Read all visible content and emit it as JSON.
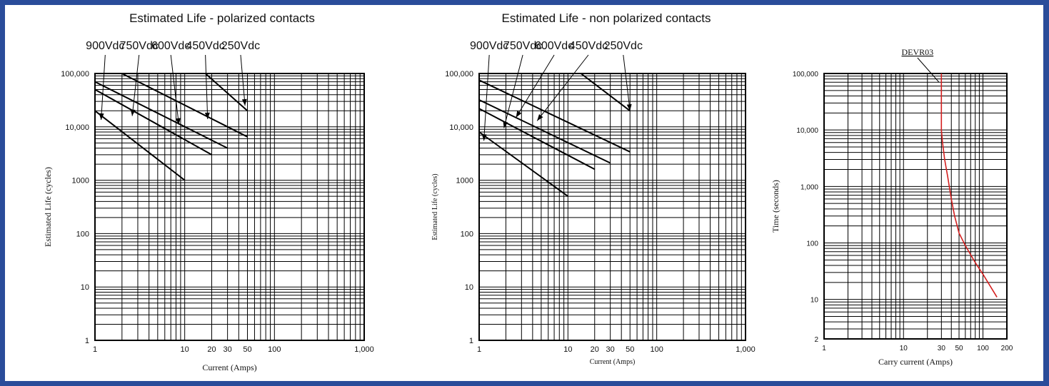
{
  "frame": {
    "border_color": "#2a4c9a"
  },
  "chart_data": [
    {
      "type": "line",
      "title": "Estimated Life - polarized contacts",
      "xlabel": "Current (Amps)",
      "ylabel": "Estimated Life (cycles)",
      "xscale": "log",
      "yscale": "log",
      "xlim": [
        1,
        1000
      ],
      "ylim": [
        1,
        100000
      ],
      "grid": true,
      "xticks": [
        {
          "v": 1,
          "t": "1"
        },
        {
          "v": 10,
          "t": "10"
        },
        {
          "v": 20,
          "t": "20"
        },
        {
          "v": 30,
          "t": "30"
        },
        {
          "v": 50,
          "t": "50"
        },
        {
          "v": 100,
          "t": "100"
        },
        {
          "v": 1000,
          "t": "1,000"
        }
      ],
      "yticks": [
        {
          "v": 1,
          "t": "1"
        },
        {
          "v": 10,
          "t": "10"
        },
        {
          "v": 100,
          "t": "100"
        },
        {
          "v": 1000,
          "t": "1000"
        },
        {
          "v": 10000,
          "t": "10,000"
        },
        {
          "v": 100000,
          "t": "100,000"
        }
      ],
      "line_color": "#000000",
      "series": [
        {
          "name": "900Vdc",
          "label_x": 1.3,
          "arrow_tip": [
            1.17,
            13500
          ],
          "points": [
            [
              1,
              20000
            ],
            [
              10,
              1000
            ]
          ]
        },
        {
          "name": "750Vdc",
          "label_x": 3.1,
          "arrow_tip": [
            2.6,
            16000
          ],
          "points": [
            [
              1,
              50000
            ],
            [
              20,
              3000
            ]
          ]
        },
        {
          "name": "600Vdc",
          "label_x": 7.0,
          "arrow_tip": [
            8.6,
            11000
          ],
          "points": [
            [
              1,
              70000
            ],
            [
              30,
              4000
            ]
          ]
        },
        {
          "name": "450Vdc",
          "label_x": 17.0,
          "arrow_tip": [
            18,
            14000
          ],
          "points": [
            [
              2,
              100000
            ],
            [
              50,
              6500
            ]
          ]
        },
        {
          "name": "250Vdc",
          "label_x": 42,
          "arrow_tip": [
            47,
            25000
          ],
          "points": [
            [
              17,
              100000
            ],
            [
              50,
              20000
            ]
          ]
        }
      ]
    },
    {
      "type": "line",
      "title": "Estimated Life - non polarized contacts",
      "xlabel": "Current (Amps)",
      "ylabel": "Estimated Life (cycles)",
      "xscale": "log",
      "yscale": "log",
      "xlim": [
        1,
        1000
      ],
      "ylim": [
        1,
        100000
      ],
      "grid": true,
      "xticks": [
        {
          "v": 1,
          "t": "1"
        },
        {
          "v": 10,
          "t": "10"
        },
        {
          "v": 20,
          "t": "20"
        },
        {
          "v": 30,
          "t": "30"
        },
        {
          "v": 50,
          "t": "50"
        },
        {
          "v": 100,
          "t": "100"
        },
        {
          "v": 1000,
          "t": "1,000"
        }
      ],
      "yticks": [
        {
          "v": 1,
          "t": "1"
        },
        {
          "v": 10,
          "t": "10"
        },
        {
          "v": 100,
          "t": "100"
        },
        {
          "v": 1000,
          "t": "1000"
        },
        {
          "v": 10000,
          "t": "10,000"
        },
        {
          "v": 100000,
          "t": "100,000"
        }
      ],
      "line_color": "#000000",
      "series": [
        {
          "name": "900Vdc",
          "label_x": 1.3,
          "arrow_tip": [
            1.13,
            5500
          ],
          "points": [
            [
              1,
              8000
            ],
            [
              10,
              500
            ]
          ]
        },
        {
          "name": "750Vdc",
          "label_x": 3.1,
          "arrow_tip": [
            1.9,
            9500
          ],
          "points": [
            [
              1,
              22000
            ],
            [
              20,
              1600
            ]
          ]
        },
        {
          "name": "600Vdc",
          "label_x": 7.0,
          "arrow_tip": [
            2.6,
            15000
          ],
          "points": [
            [
              1,
              32000
            ],
            [
              30,
              2100
            ]
          ]
        },
        {
          "name": "450Vdc",
          "label_x": 17.0,
          "arrow_tip": [
            4.5,
            13000
          ],
          "points": [
            [
              1,
              75000
            ],
            [
              50,
              3400
            ]
          ]
        },
        {
          "name": "250Vdc",
          "label_x": 42,
          "arrow_tip": [
            50,
            20000
          ],
          "points": [
            [
              14,
              100000
            ],
            [
              50,
              20000
            ]
          ]
        }
      ]
    },
    {
      "type": "line",
      "title": "",
      "xlabel": "Carry current (Amps)",
      "ylabel": "Time (seconds)",
      "xscale": "log",
      "yscale": "log",
      "xlim": [
        1,
        200
      ],
      "ylim": [
        2,
        100000
      ],
      "grid": true,
      "xticks": [
        {
          "v": 1,
          "t": "1"
        },
        {
          "v": 10,
          "t": "10"
        },
        {
          "v": 30,
          "t": "30"
        },
        {
          "v": 50,
          "t": "50"
        },
        {
          "v": 100,
          "t": "100"
        },
        {
          "v": 200,
          "t": "200"
        }
      ],
      "yticks": [
        {
          "v": 2,
          "t": "2"
        },
        {
          "v": 10,
          "t": "10"
        },
        {
          "v": 100,
          "t": "100"
        },
        {
          "v": 1000,
          "t": "1,000"
        },
        {
          "v": 10000,
          "t": "10,000"
        },
        {
          "v": 100000,
          "t": "100,000"
        }
      ],
      "line_color": "#d42020",
      "series": [
        {
          "name": "DEVR03",
          "label_x": 15,
          "arrow_tip": [
            28,
            70000
          ],
          "points": [
            [
              30,
              100000
            ],
            [
              30,
              10000
            ],
            [
              31,
              6000
            ],
            [
              33,
              3000
            ],
            [
              36,
              1500
            ],
            [
              40,
              600
            ],
            [
              44,
              300
            ],
            [
              50,
              150
            ],
            [
              60,
              90
            ],
            [
              80,
              45
            ],
            [
              100,
              28
            ],
            [
              150,
              11
            ]
          ]
        }
      ]
    }
  ]
}
